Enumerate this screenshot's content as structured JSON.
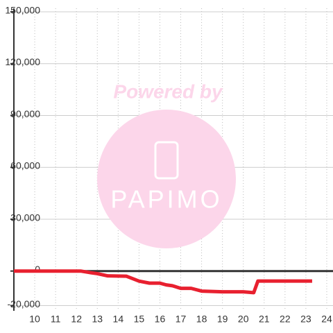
{
  "chart_data": {
    "type": "line",
    "x": [
      9,
      12.2,
      12.7,
      13,
      13.5,
      14.4,
      15,
      15.5,
      16,
      16.3,
      16.6,
      17,
      17.5,
      18,
      19,
      20,
      20.5,
      20.7,
      23.3
    ],
    "series": [
      {
        "color": "#e8202f",
        "values": [
          0,
          0,
          -1000,
          -1500,
          -2800,
          -3000,
          -5800,
          -7000,
          -7000,
          -8000,
          -8500,
          -10000,
          -10000,
          -11600,
          -12000,
          -12000,
          -12500,
          -5800,
          -5800
        ]
      }
    ],
    "xlim": [
      9,
      24.3
    ],
    "xticks": [
      10,
      11,
      12,
      13,
      14,
      15,
      16,
      17,
      18,
      19,
      20,
      21,
      22,
      23,
      24
    ],
    "ylim": [
      -23000,
      152000
    ],
    "yticks": [
      {
        "value": -20000,
        "label": "-20,000"
      },
      0,
      {
        "value": 30000,
        "label": "30,000"
      },
      {
        "value": 60000,
        "label": "60,000"
      },
      {
        "value": 90000,
        "label": "90,000"
      },
      {
        "value": 120000,
        "label": "120,000"
      },
      {
        "value": 150000,
        "label": "150,000"
      }
    ],
    "grid": true,
    "watermark": {
      "line1": "Powered by",
      "line2": "PAPIMO"
    }
  }
}
